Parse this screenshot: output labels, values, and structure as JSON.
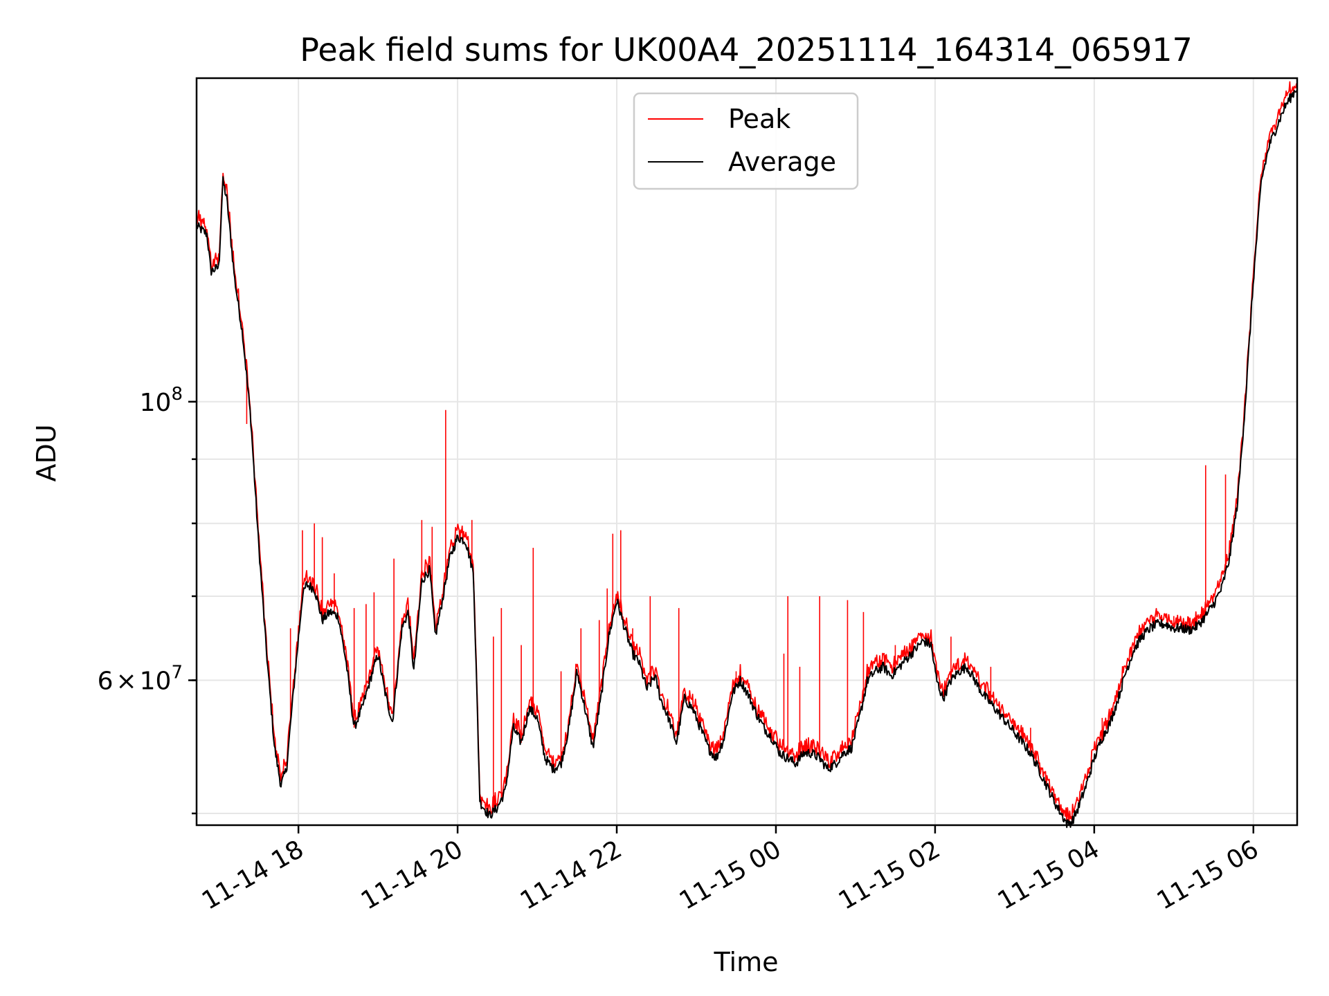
{
  "chart_data": {
    "type": "line",
    "title": "Peak field sums for UK00A4_20251114_164314_065917",
    "xlabel": "Time",
    "ylabel": "ADU",
    "yscale": "log",
    "grid": true,
    "legend_position": "top-center",
    "x_unit": "hours since 2025-11-14 00:00",
    "xlim": [
      16.72,
      30.55
    ],
    "ylim": [
      46000000,
      181000000
    ],
    "x_ticks": [
      {
        "value": 18,
        "label": "11-14 18"
      },
      {
        "value": 20,
        "label": "11-14 20"
      },
      {
        "value": 22,
        "label": "11-14 22"
      },
      {
        "value": 24,
        "label": "11-15 00"
      },
      {
        "value": 26,
        "label": "11-15 02"
      },
      {
        "value": 28,
        "label": "11-15 04"
      },
      {
        "value": 30,
        "label": "11-15 06"
      }
    ],
    "y_major_ticks": [
      {
        "value": 100000000,
        "base": "10",
        "exp": "8",
        "coef": ""
      },
      {
        "value": 60000000,
        "base": "10",
        "exp": "7",
        "coef": "6"
      }
    ],
    "y_minor_ticks": [
      47000000,
      60000000,
      70000000,
      80000000,
      90000000,
      100000000
    ],
    "series": [
      {
        "name": "Average",
        "color": "#000000",
        "points": [
          [
            16.72,
            138000000
          ],
          [
            16.85,
            136000000
          ],
          [
            16.9,
            127000000
          ],
          [
            17.0,
            128000000
          ],
          [
            17.05,
            150000000
          ],
          [
            17.1,
            145000000
          ],
          [
            17.2,
            125000000
          ],
          [
            17.3,
            113000000
          ],
          [
            17.4,
            97000000
          ],
          [
            17.5,
            77000000
          ],
          [
            17.6,
            63000000
          ],
          [
            17.7,
            53000000
          ],
          [
            17.78,
            49500000
          ],
          [
            17.85,
            51000000
          ],
          [
            17.95,
            60000000
          ],
          [
            18.05,
            70000000
          ],
          [
            18.1,
            71500000
          ],
          [
            18.2,
            71000000
          ],
          [
            18.3,
            67000000
          ],
          [
            18.4,
            68000000
          ],
          [
            18.5,
            67500000
          ],
          [
            18.6,
            62000000
          ],
          [
            18.7,
            55000000
          ],
          [
            18.8,
            57000000
          ],
          [
            18.9,
            60000000
          ],
          [
            19.0,
            63000000
          ],
          [
            19.08,
            59000000
          ],
          [
            19.18,
            55500000
          ],
          [
            19.3,
            66000000
          ],
          [
            19.38,
            68000000
          ],
          [
            19.45,
            61000000
          ],
          [
            19.55,
            72000000
          ],
          [
            19.65,
            73500000
          ],
          [
            19.72,
            65000000
          ],
          [
            19.8,
            69000000
          ],
          [
            19.9,
            75000000
          ],
          [
            20.0,
            78000000
          ],
          [
            20.1,
            77500000
          ],
          [
            20.2,
            73000000
          ],
          [
            20.28,
            48000000
          ],
          [
            20.4,
            46800000
          ],
          [
            20.5,
            47500000
          ],
          [
            20.6,
            49000000
          ],
          [
            20.7,
            55000000
          ],
          [
            20.8,
            53500000
          ],
          [
            20.9,
            57000000
          ],
          [
            21.0,
            56000000
          ],
          [
            21.1,
            52000000
          ],
          [
            21.2,
            51000000
          ],
          [
            21.3,
            51500000
          ],
          [
            21.4,
            55000000
          ],
          [
            21.5,
            61000000
          ],
          [
            21.6,
            57000000
          ],
          [
            21.7,
            53000000
          ],
          [
            21.8,
            58000000
          ],
          [
            21.9,
            65000000
          ],
          [
            22.0,
            69500000
          ],
          [
            22.1,
            66000000
          ],
          [
            22.2,
            63000000
          ],
          [
            22.28,
            62000000
          ],
          [
            22.38,
            59000000
          ],
          [
            22.48,
            60500000
          ],
          [
            22.55,
            58000000
          ],
          [
            22.65,
            56000000
          ],
          [
            22.75,
            53500000
          ],
          [
            22.85,
            58000000
          ],
          [
            22.95,
            57000000
          ],
          [
            23.05,
            55000000
          ],
          [
            23.15,
            53000000
          ],
          [
            23.25,
            52000000
          ],
          [
            23.35,
            54000000
          ],
          [
            23.45,
            58500000
          ],
          [
            23.55,
            60000000
          ],
          [
            23.65,
            58500000
          ],
          [
            23.75,
            56500000
          ],
          [
            23.85,
            55000000
          ],
          [
            23.95,
            54000000
          ],
          [
            24.05,
            52500000
          ],
          [
            24.15,
            52000000
          ],
          [
            24.25,
            51500000
          ],
          [
            24.35,
            52500000
          ],
          [
            24.45,
            52500000
          ],
          [
            24.55,
            52000000
          ],
          [
            24.65,
            51000000
          ],
          [
            24.75,
            51500000
          ],
          [
            24.85,
            52500000
          ],
          [
            24.95,
            53000000
          ],
          [
            25.05,
            56000000
          ],
          [
            25.15,
            60000000
          ],
          [
            25.25,
            61000000
          ],
          [
            25.35,
            61500000
          ],
          [
            25.45,
            60500000
          ],
          [
            25.55,
            61500000
          ],
          [
            25.65,
            62500000
          ],
          [
            25.75,
            63500000
          ],
          [
            25.85,
            64500000
          ],
          [
            25.95,
            64000000
          ],
          [
            26.02,
            60000000
          ],
          [
            26.1,
            58000000
          ],
          [
            26.2,
            60000000
          ],
          [
            26.3,
            61000000
          ],
          [
            26.4,
            61500000
          ],
          [
            26.5,
            60000000
          ],
          [
            26.6,
            58500000
          ],
          [
            26.7,
            57500000
          ],
          [
            26.8,
            56500000
          ],
          [
            26.9,
            55500000
          ],
          [
            27.0,
            54500000
          ],
          [
            27.1,
            53500000
          ],
          [
            27.2,
            52500000
          ],
          [
            27.3,
            51000000
          ],
          [
            27.4,
            49500000
          ],
          [
            27.5,
            48000000
          ],
          [
            27.6,
            46800000
          ],
          [
            27.66,
            46100000
          ],
          [
            27.72,
            46300000
          ],
          [
            27.8,
            47500000
          ],
          [
            27.9,
            49500000
          ],
          [
            28.0,
            52000000
          ],
          [
            28.1,
            54000000
          ],
          [
            28.2,
            55500000
          ],
          [
            28.3,
            58000000
          ],
          [
            28.4,
            61000000
          ],
          [
            28.5,
            63500000
          ],
          [
            28.6,
            65000000
          ],
          [
            28.7,
            66000000
          ],
          [
            28.8,
            66500000
          ],
          [
            28.9,
            66500000
          ],
          [
            29.0,
            66000000
          ],
          [
            29.1,
            66000000
          ],
          [
            29.2,
            65800000
          ],
          [
            29.3,
            66300000
          ],
          [
            29.4,
            67500000
          ],
          [
            29.5,
            69000000
          ],
          [
            29.6,
            71000000
          ],
          [
            29.7,
            75000000
          ],
          [
            29.8,
            83000000
          ],
          [
            29.9,
            100000000
          ],
          [
            30.0,
            125000000
          ],
          [
            30.1,
            150000000
          ],
          [
            30.2,
            160000000
          ],
          [
            30.3,
            166000000
          ],
          [
            30.4,
            172000000
          ],
          [
            30.55,
            178000000
          ]
        ]
      },
      {
        "name": "Peak",
        "color": "#ff0000",
        "spikes": [
          [
            17.35,
            96000000
          ],
          [
            17.9,
            66000000
          ],
          [
            18.05,
            79000000
          ],
          [
            18.2,
            80000000
          ],
          [
            18.3,
            78000000
          ],
          [
            18.45,
            73000000
          ],
          [
            18.7,
            68500000
          ],
          [
            18.85,
            69000000
          ],
          [
            18.95,
            70500000
          ],
          [
            19.2,
            75000000
          ],
          [
            19.55,
            80500000
          ],
          [
            19.68,
            79500000
          ],
          [
            19.85,
            98500000
          ],
          [
            20.18,
            80500000
          ],
          [
            20.45,
            65000000
          ],
          [
            20.55,
            68500000
          ],
          [
            20.8,
            64000000
          ],
          [
            20.95,
            76500000
          ],
          [
            21.3,
            61000000
          ],
          [
            21.55,
            66000000
          ],
          [
            21.78,
            67000000
          ],
          [
            21.88,
            71000000
          ],
          [
            21.95,
            78500000
          ],
          [
            22.05,
            79000000
          ],
          [
            22.2,
            66000000
          ],
          [
            22.42,
            70000000
          ],
          [
            22.78,
            68500000
          ],
          [
            23.5,
            61000000
          ],
          [
            24.1,
            63000000
          ],
          [
            24.15,
            70000000
          ],
          [
            24.3,
            61500000
          ],
          [
            24.55,
            70000000
          ],
          [
            24.9,
            69500000
          ],
          [
            25.1,
            68000000
          ],
          [
            25.5,
            64000000
          ],
          [
            26.2,
            65000000
          ],
          [
            26.7,
            61500000
          ],
          [
            27.2,
            55000000
          ],
          [
            28.1,
            56000000
          ],
          [
            28.5,
            64000000
          ],
          [
            29.0,
            67500000
          ],
          [
            29.4,
            89000000
          ],
          [
            29.65,
            87500000
          ],
          [
            29.9,
            100000000
          ],
          [
            30.2,
            163000000
          ]
        ]
      }
    ]
  }
}
